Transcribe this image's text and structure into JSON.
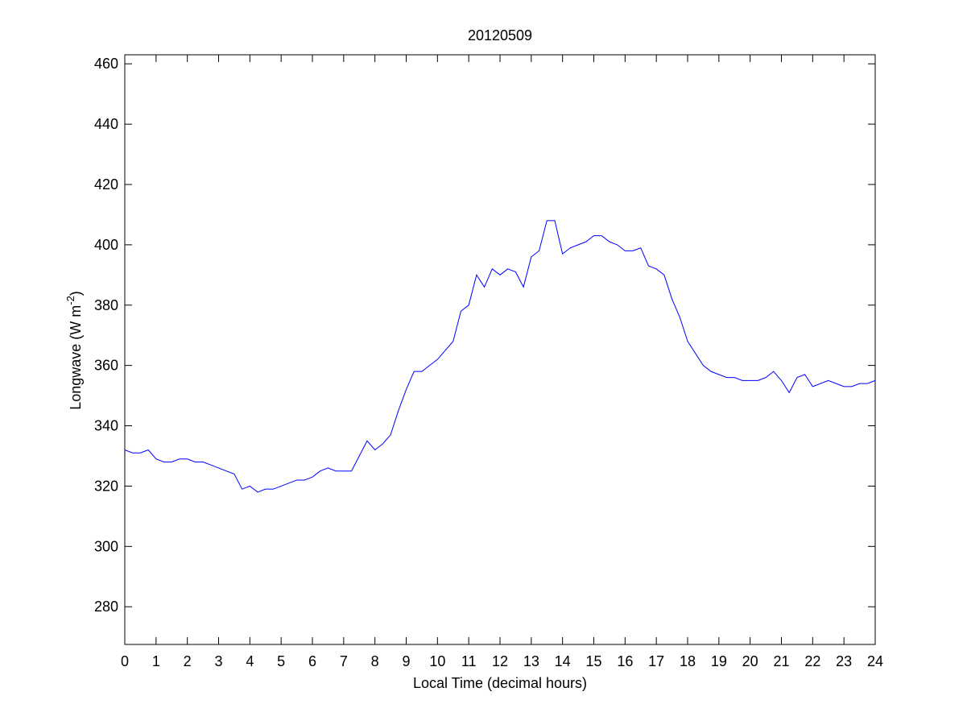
{
  "chart_data": {
    "type": "line",
    "title": "20120509",
    "xlabel": "Local Time (decimal hours)",
    "ylabel": {
      "text": "Longwave (W m",
      "superscript": "-2",
      "suffix": ")"
    },
    "x": [
      0,
      0.25,
      0.5,
      0.75,
      1,
      1.25,
      1.5,
      1.75,
      2,
      2.25,
      2.5,
      2.75,
      3,
      3.25,
      3.5,
      3.75,
      4,
      4.25,
      4.5,
      4.75,
      5,
      5.25,
      5.5,
      5.75,
      6,
      6.25,
      6.5,
      6.75,
      7,
      7.25,
      7.5,
      7.75,
      8,
      8.25,
      8.5,
      8.75,
      9,
      9.25,
      9.5,
      9.75,
      10,
      10.25,
      10.5,
      10.75,
      11,
      11.25,
      11.5,
      11.75,
      12,
      12.25,
      12.5,
      12.75,
      13,
      13.25,
      13.5,
      13.75,
      14,
      14.25,
      14.5,
      14.75,
      15,
      15.25,
      15.5,
      15.75,
      16,
      16.25,
      16.5,
      16.75,
      17,
      17.25,
      17.5,
      17.75,
      18,
      18.25,
      18.5,
      18.75,
      19,
      19.25,
      19.5,
      19.75,
      20,
      20.25,
      20.5,
      20.75,
      21,
      21.25,
      21.5,
      21.75,
      22,
      22.25,
      22.5,
      22.75,
      23,
      23.25,
      23.5,
      23.75,
      24
    ],
    "series": [
      {
        "name": "Longwave",
        "color": "#0000ff",
        "values": [
          332,
          331,
          331,
          332,
          329,
          328,
          328,
          329,
          329,
          328,
          328,
          327,
          326,
          325,
          324,
          319,
          320,
          318,
          319,
          319,
          320,
          321,
          322,
          322,
          323,
          325,
          326,
          325,
          325,
          325,
          330,
          335,
          332,
          334,
          337,
          345,
          352,
          358,
          358,
          360,
          362,
          365,
          368,
          378,
          380,
          390,
          386,
          392,
          390,
          392,
          391,
          386,
          396,
          398,
          408,
          408,
          397,
          399,
          400,
          401,
          403,
          403,
          401,
          400,
          398,
          398,
          399,
          393,
          392,
          390,
          382,
          376,
          368,
          364,
          360,
          358,
          357,
          356,
          356,
          355,
          355,
          355,
          356,
          358,
          355,
          351,
          356,
          357,
          353,
          354,
          355,
          354,
          353,
          353,
          354,
          354,
          355
        ]
      }
    ],
    "xlim": [
      0,
      24
    ],
    "xticks": [
      0,
      1,
      2,
      3,
      4,
      5,
      6,
      7,
      8,
      9,
      10,
      11,
      12,
      13,
      14,
      15,
      16,
      17,
      18,
      19,
      20,
      21,
      22,
      23,
      24
    ],
    "ylim": [
      267.5,
      463
    ],
    "yticks": [
      280,
      300,
      320,
      340,
      360,
      380,
      400,
      420,
      440,
      460
    ],
    "grid": false
  }
}
